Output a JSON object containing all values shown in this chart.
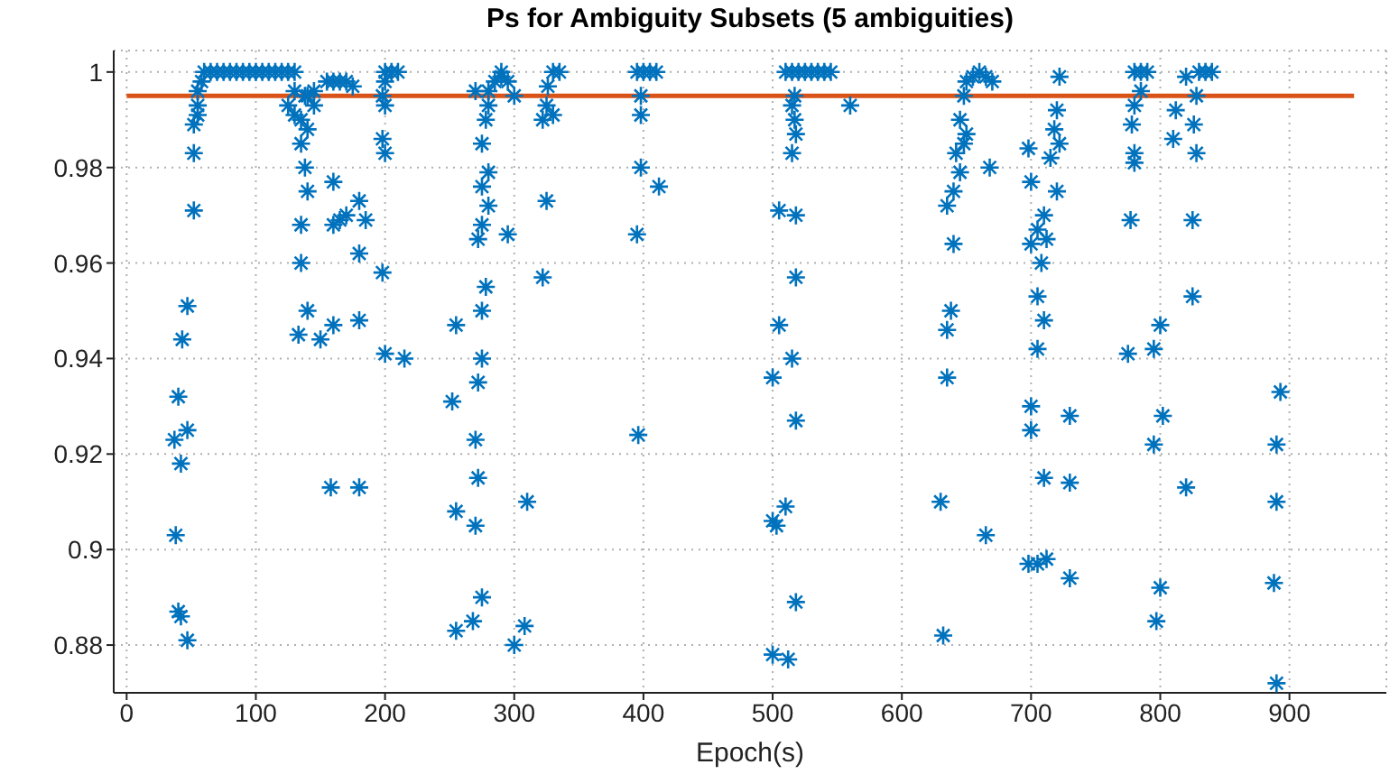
{
  "chart_data": {
    "type": "scatter",
    "title": "Ps for Ambiguity Subsets (5 ambiguities)",
    "xlabel": "Epoch(s)",
    "xlim": [
      -10,
      975
    ],
    "xticks": [
      0,
      100,
      200,
      300,
      400,
      500,
      600,
      700,
      800,
      900
    ],
    "ylim": [
      0.87,
      1.0045
    ],
    "yticks": [
      0.88,
      0.9,
      0.92,
      0.94,
      0.96,
      0.98,
      1
    ],
    "grid": true,
    "series": [
      {
        "marker": "cross",
        "color": "#0072bd",
        "x": [
          40,
          42,
          47,
          37,
          42,
          47,
          40,
          43,
          47,
          52,
          52,
          52,
          55,
          55,
          55,
          58,
          38,
          60,
          65,
          70,
          75,
          80,
          85,
          90,
          95,
          100,
          105,
          110,
          115,
          120,
          125,
          130,
          130,
          135,
          140,
          145,
          135,
          138,
          140,
          135,
          135,
          140,
          133,
          150,
          140,
          138,
          145,
          130,
          125,
          160,
          165,
          160,
          170,
          180,
          180,
          180,
          160,
          158,
          180,
          155,
          160,
          165,
          170,
          175,
          185,
          200,
          205,
          210,
          200,
          198,
          200,
          200,
          198,
          198,
          200,
          215,
          255,
          252,
          255,
          255,
          268,
          270,
          272,
          270,
          275,
          272,
          275,
          275,
          278,
          272,
          275,
          280,
          275,
          280,
          275,
          278,
          280,
          280,
          285,
          290,
          290,
          295,
          295,
          300,
          308,
          310,
          300,
          270,
          326,
          325,
          322,
          330,
          325,
          322,
          330,
          335,
          395,
          400,
          405,
          410,
          398,
          398,
          398,
          412,
          395,
          396,
          510,
          515,
          520,
          525,
          530,
          535,
          540,
          545,
          517,
          515,
          517,
          518,
          515,
          518,
          505,
          518,
          505,
          500,
          515,
          518,
          510,
          500,
          503,
          518,
          500,
          512,
          560,
          630,
          632,
          635,
          635,
          638,
          640,
          635,
          640,
          645,
          642,
          648,
          650,
          645,
          648,
          650,
          655,
          660,
          665,
          670,
          668,
          665,
          698,
          700,
          705,
          700,
          708,
          705,
          705,
          710,
          700,
          700,
          710,
          698,
          705,
          712,
          730,
          730,
          730,
          722,
          720,
          718,
          722,
          715,
          720,
          710,
          712,
          780,
          785,
          790,
          785,
          780,
          778,
          780,
          780,
          777,
          775,
          795,
          800,
          802,
          795,
          800,
          797,
          820,
          812,
          810,
          820,
          830,
          835,
          840,
          828,
          826,
          828,
          825,
          825,
          893,
          890,
          890,
          888,
          890
        ],
        "values": [
          0.887,
          0.886,
          0.881,
          0.923,
          0.918,
          0.925,
          0.932,
          0.944,
          0.951,
          0.971,
          0.983,
          0.989,
          0.991,
          0.993,
          0.996,
          0.998,
          0.903,
          1,
          1,
          1,
          1,
          1,
          1,
          1,
          1,
          1,
          1,
          1,
          1,
          1,
          1,
          1,
          0.991,
          0.99,
          0.995,
          0.993,
          0.985,
          0.98,
          0.975,
          0.968,
          0.96,
          0.95,
          0.945,
          0.944,
          0.988,
          0.995,
          0.996,
          0.996,
          0.993,
          0.977,
          0.969,
          0.968,
          0.97,
          0.973,
          0.962,
          0.948,
          0.947,
          0.913,
          0.913,
          0.998,
          0.998,
          0.998,
          0.998,
          0.997,
          0.969,
          1,
          1,
          1,
          0.998,
          0.995,
          0.993,
          0.983,
          0.986,
          0.958,
          0.941,
          0.94,
          0.947,
          0.931,
          0.908,
          0.883,
          0.885,
          0.905,
          0.915,
          0.923,
          0.89,
          0.935,
          0.94,
          0.95,
          0.955,
          0.965,
          0.968,
          0.972,
          0.976,
          0.979,
          0.985,
          0.99,
          0.993,
          0.996,
          0.998,
          0.999,
          1,
          0.998,
          0.966,
          0.88,
          0.884,
          0.91,
          0.995,
          0.996,
          0.997,
          0.993,
          0.99,
          0.991,
          0.973,
          0.957,
          1,
          1,
          1,
          1,
          1,
          1,
          0.995,
          0.991,
          0.98,
          0.976,
          0.966,
          0.924,
          1,
          1,
          1,
          1,
          1,
          1,
          1,
          1,
          0.995,
          0.993,
          0.99,
          0.987,
          0.983,
          0.97,
          0.971,
          0.957,
          0.947,
          0.936,
          0.94,
          0.927,
          0.909,
          0.906,
          0.905,
          0.889,
          0.878,
          0.877,
          0.993,
          0.91,
          0.882,
          0.946,
          0.936,
          0.95,
          0.964,
          0.972,
          0.975,
          0.979,
          0.983,
          0.985,
          0.987,
          0.99,
          0.995,
          0.998,
          0.999,
          1,
          0.999,
          0.998,
          0.98,
          0.903,
          0.984,
          0.977,
          0.967,
          0.964,
          0.96,
          0.953,
          0.942,
          0.948,
          0.93,
          0.925,
          0.915,
          0.897,
          0.897,
          0.898,
          0.894,
          0.928,
          0.914,
          0.999,
          0.992,
          0.988,
          0.985,
          0.982,
          0.975,
          0.97,
          0.965,
          1,
          1,
          1,
          0.996,
          0.993,
          0.989,
          0.983,
          0.981,
          0.969,
          0.941,
          0.942,
          0.947,
          0.928,
          0.922,
          0.892,
          0.885,
          0.913,
          0.992,
          0.986,
          0.999,
          1,
          1,
          1,
          0.995,
          0.989,
          0.983,
          0.969,
          0.953,
          0.933,
          0.922,
          0.91,
          0.893,
          0.872
        ]
      },
      {
        "type": "line",
        "marker": "none",
        "color": "#d95319",
        "x": [
          0,
          950
        ],
        "values": [
          0.995,
          0.995
        ]
      }
    ]
  }
}
